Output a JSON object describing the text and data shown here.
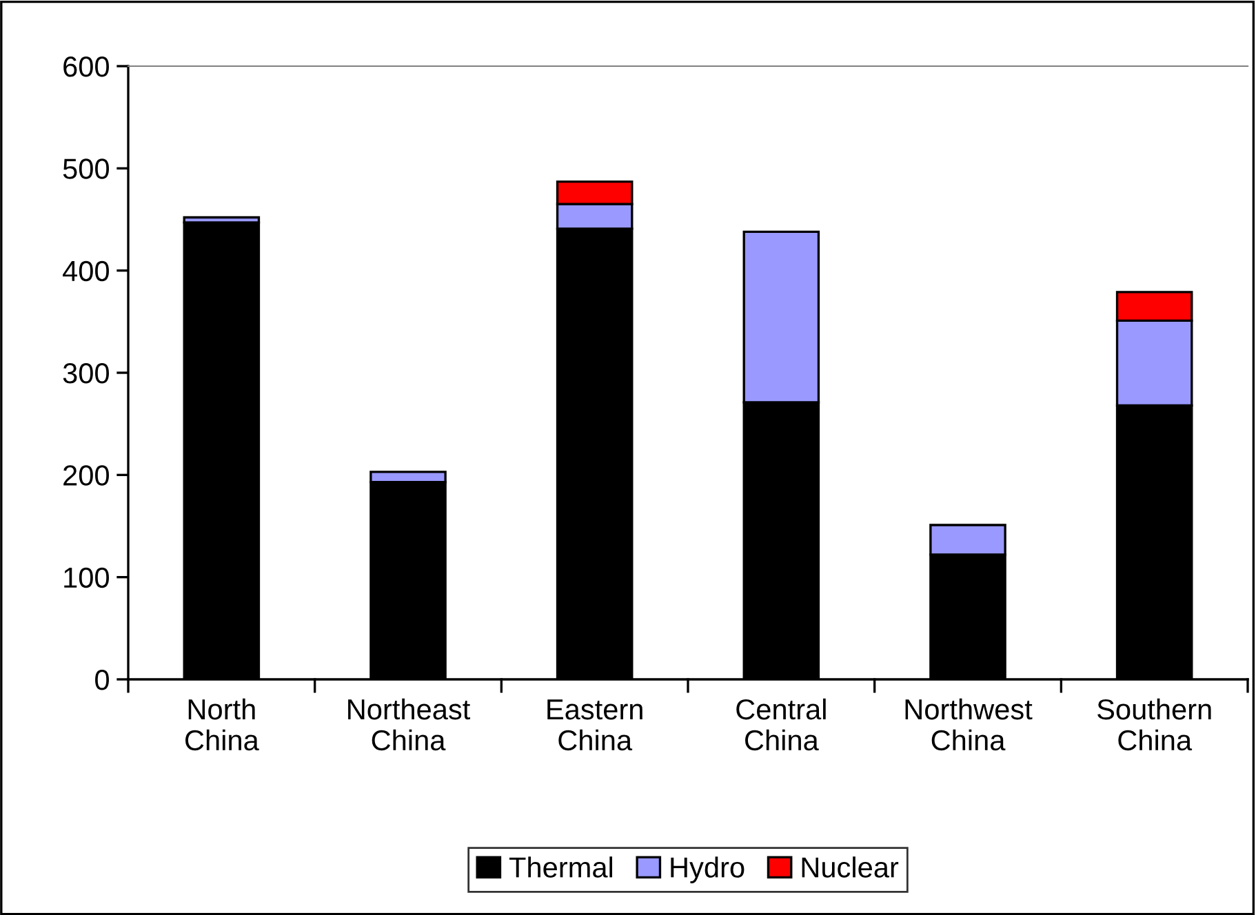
{
  "chart_data": {
    "type": "bar",
    "stacked": true,
    "categories": [
      "North\nChina",
      "Northeast\nChina",
      "Eastern\nChina",
      "Central\nChina",
      "Northwest\nChina",
      "Southern\nChina"
    ],
    "series": [
      {
        "name": "Thermal",
        "color": "#000000",
        "values": [
          447,
          193,
          441,
          271,
          122,
          268
        ]
      },
      {
        "name": "Hydro",
        "color": "#9999ff",
        "values": [
          5,
          10,
          24,
          167,
          29,
          83
        ]
      },
      {
        "name": "Nuclear",
        "color": "#ff0000",
        "values": [
          null,
          null,
          22,
          null,
          null,
          28
        ]
      }
    ],
    "ylim": [
      0,
      600
    ],
    "yticks": [
      0,
      100,
      200,
      300,
      400,
      500,
      600
    ],
    "grid": false,
    "legend": "bottom"
  }
}
